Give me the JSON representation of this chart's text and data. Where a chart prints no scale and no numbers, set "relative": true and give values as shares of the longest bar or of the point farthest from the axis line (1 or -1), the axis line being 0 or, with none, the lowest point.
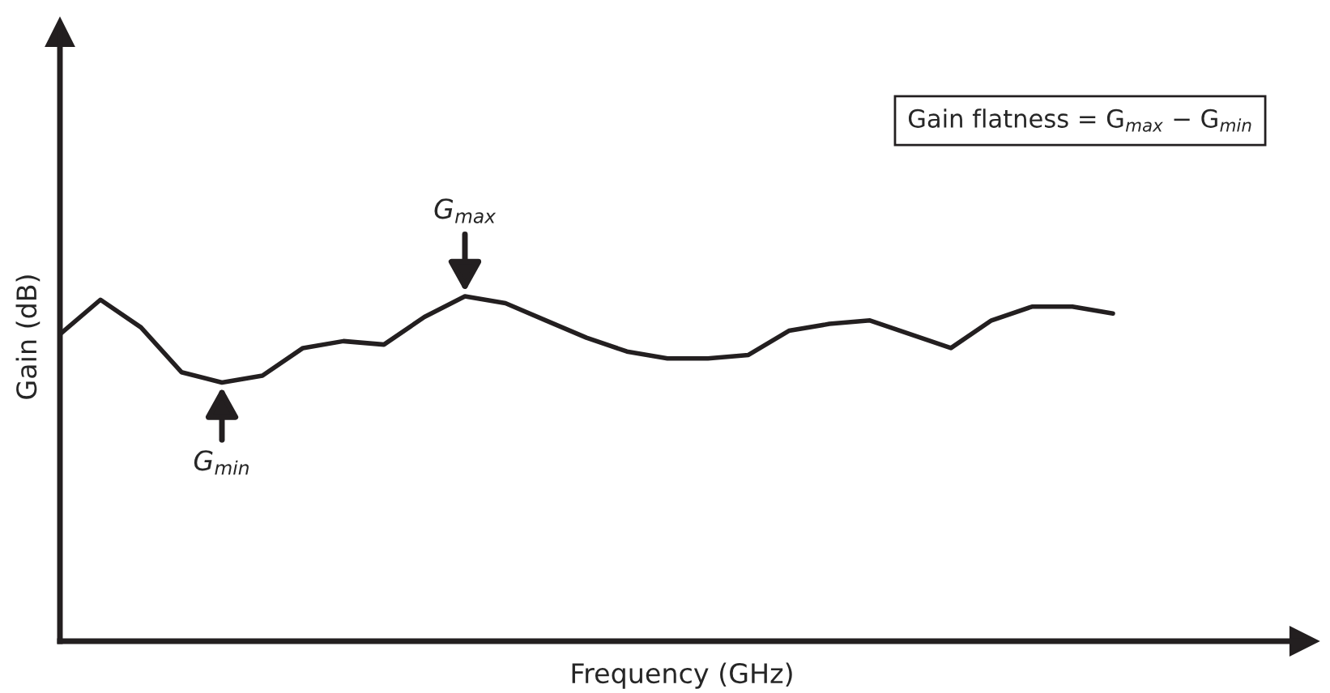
{
  "chart_data": {
    "type": "line",
    "relative": true,
    "xlabel": "Frequency (GHz)",
    "ylabel": "Gain (dB)",
    "categories": [
      null,
      null,
      null,
      null,
      null,
      null,
      null,
      null,
      null,
      null,
      null,
      null,
      null,
      null,
      null,
      null,
      null,
      null,
      null,
      null,
      null,
      null,
      null,
      null,
      null,
      null,
      null
    ],
    "series": [
      {
        "color": "#231f20",
        "values": [
          0.89,
          0.99,
          0.91,
          0.78,
          0.75,
          0.77,
          0.85,
          0.87,
          0.86,
          0.94,
          1,
          0.98,
          0.93,
          0.88,
          0.84,
          0.82,
          0.82,
          0.83,
          0.9,
          0.92,
          0.93,
          0.89,
          0.85,
          0.93,
          0.97,
          0.97,
          0.95
        ]
      }
    ],
    "annotations": [
      "Gain flatness = G$_{max}$ − G$_{min}$",
      "G$_{max}$",
      "G$_{min}$"
    ],
    "grid": false,
    "legend": false,
    "marker": "none",
    "line_style": "solid"
  }
}
